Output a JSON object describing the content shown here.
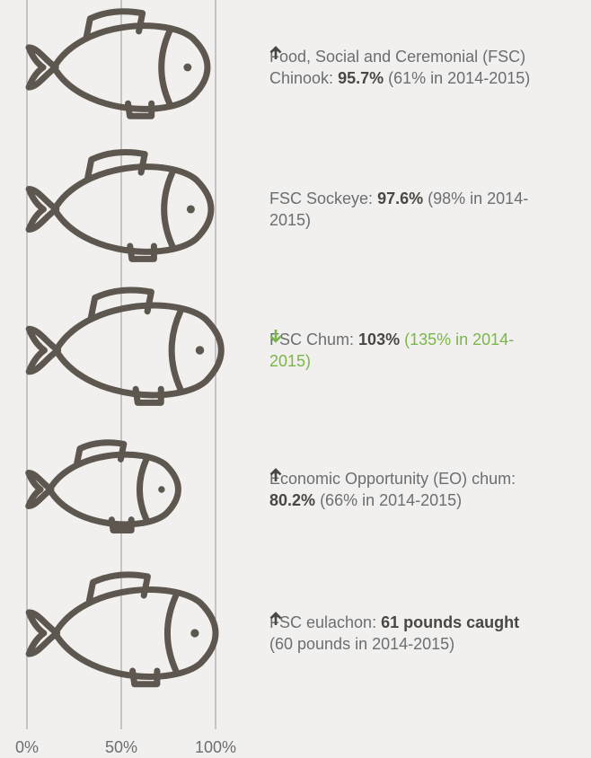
{
  "chart_data": {
    "type": "pictograph",
    "values": [
      95.7,
      97.6,
      103,
      80.2,
      100
    ],
    "color": "#5d5750",
    "xlim": [
      0,
      100
    ],
    "xticks": [
      {
        "value": 0,
        "label": "0%"
      },
      {
        "value": 50,
        "label": "50%"
      },
      {
        "value": 100,
        "label": "100%"
      }
    ],
    "grid": true,
    "labels": [
      {
        "text": "Food, Social and Ceremonial (FSC) Chinook:",
        "highlight": "95.7%",
        "trend": "up",
        "comparison": "(61% in 2014-2015)"
      },
      {
        "text": "FSC Sockeye:",
        "highlight": "97.6%",
        "trend": null,
        "comparison": "(98% in 2014-2015)"
      },
      {
        "text": "FSC Chum:",
        "highlight": "103%",
        "trend": "down",
        "comparison": "(135% in 2014-2015)",
        "comparison_color": "#7ab648"
      },
      {
        "text": "Economic Opportunity (EO) chum:",
        "highlight": "80.2%",
        "trend": "up",
        "comparison": "(66% in 2014-2015)"
      },
      {
        "text": "FSC eulachon:",
        "highlight": "61 pounds caught",
        "trend": "up",
        "comparison": "(60 pounds in 2014-2015)"
      }
    ]
  }
}
